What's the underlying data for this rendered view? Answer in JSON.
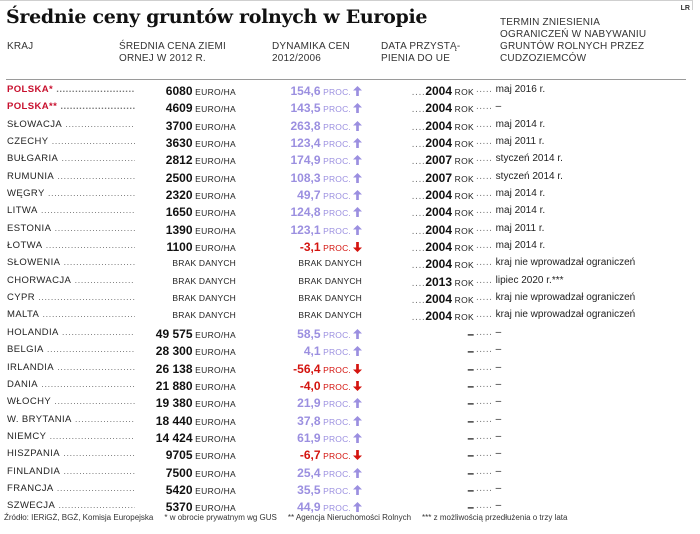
{
  "title": "Średnie ceny gruntów rolnych w Europie",
  "logo": "LR",
  "headers": {
    "country": "KRAJ",
    "price": [
      "ŚREDNIA CENA ZIEMI",
      "ORNEJ  W 2012 R."
    ],
    "dynamics": [
      "DYNAMIKA CEN",
      "2012/2006"
    ],
    "date": [
      "DATA PRZYSTĄ-",
      "PIENIA DO UE"
    ],
    "term": [
      "TERMIN ZNIESIENIA",
      "OGRANICZEŃ W NABYWANIU",
      "GRUNTÓW ROLNYCH PRZEZ",
      "CUDZOZIEMCÓW"
    ]
  },
  "units": {
    "price": "EURO/HA",
    "dynamics": "PROC.",
    "date": "ROK",
    "no_data": "BRAK DANYCH",
    "dash": "–"
  },
  "rows": [
    {
      "country": "POLSKA*",
      "highlight": true,
      "price": "6080",
      "dyn": "154,6",
      "trend": "up",
      "year": "2004",
      "term": "maj 2016 r."
    },
    {
      "country": "POLSKA**",
      "highlight": true,
      "price": "4609",
      "dyn": "143,5",
      "trend": "up",
      "year": "2004",
      "term": "–"
    },
    {
      "country": "SŁOWACJA",
      "price": "3700",
      "dyn": "263,8",
      "trend": "up",
      "year": "2004",
      "term": "maj 2014 r."
    },
    {
      "country": "CZECHY",
      "price": "3630",
      "dyn": "123,4",
      "trend": "up",
      "year": "2004",
      "term": "maj 2011 r."
    },
    {
      "country": "BUŁGARIA",
      "price": "2812",
      "dyn": "174,9",
      "trend": "up",
      "year": "2007",
      "term": "styczeń 2014 r."
    },
    {
      "country": "RUMUNIA",
      "price": "2500",
      "dyn": "108,3",
      "trend": "up",
      "year": "2007",
      "term": "styczeń 2014 r."
    },
    {
      "country": "WĘGRY",
      "price": "2320",
      "dyn": "49,7",
      "trend": "up",
      "year": "2004",
      "term": "maj 2014 r."
    },
    {
      "country": "LITWA",
      "price": "1650",
      "dyn": "124,8",
      "trend": "up",
      "year": "2004",
      "term": "maj 2014 r."
    },
    {
      "country": "ESTONIA",
      "price": "1390",
      "dyn": "123,1",
      "trend": "up",
      "year": "2004",
      "term": "maj 2011 r."
    },
    {
      "country": "ŁOTWA",
      "price": "1100",
      "dyn": "-3,1",
      "trend": "down",
      "year": "2004",
      "term": "maj 2014 r."
    },
    {
      "country": "SŁOWENIA",
      "price": "",
      "dyn": "",
      "trend": "",
      "year": "2004",
      "term": "kraj nie wprowadzał ograniczeń"
    },
    {
      "country": "CHORWACJA",
      "price": "",
      "dyn": "",
      "trend": "",
      "year": "2013",
      "term": "lipiec 2020 r.***"
    },
    {
      "country": "CYPR",
      "price": "",
      "dyn": "",
      "trend": "",
      "year": "2004",
      "term": "kraj nie wprowadzał ograniczeń"
    },
    {
      "country": "MALTA",
      "price": "",
      "dyn": "",
      "trend": "",
      "year": "2004",
      "term": "kraj nie wprowadzał ograniczeń"
    },
    {
      "country": "HOLANDIA",
      "price": "49 575",
      "dyn": "58,5",
      "trend": "up",
      "year": "",
      "term": "–"
    },
    {
      "country": "BELGIA",
      "price": "28 300",
      "dyn": "4,1",
      "trend": "up",
      "year": "",
      "term": "–"
    },
    {
      "country": "IRLANDIA",
      "price": "26 138",
      "dyn": "-56,4",
      "trend": "down",
      "year": "",
      "term": "–"
    },
    {
      "country": "DANIA",
      "price": "21 880",
      "dyn": "-4,0",
      "trend": "down",
      "year": "",
      "term": "–"
    },
    {
      "country": "WŁOCHY",
      "price": "19 380",
      "dyn": "21,9",
      "trend": "up",
      "year": "",
      "term": "–"
    },
    {
      "country": "W. BRYTANIA",
      "price": "18 440",
      "dyn": "37,8",
      "trend": "up",
      "year": "",
      "term": "–"
    },
    {
      "country": "NIEMCY",
      "price": "14 424",
      "dyn": "61,9",
      "trend": "up",
      "year": "",
      "term": "–"
    },
    {
      "country": "HISZPANIA",
      "price": "9705",
      "dyn": "-6,7",
      "trend": "down",
      "year": "",
      "term": "–"
    },
    {
      "country": "FINLANDIA",
      "price": "7500",
      "dyn": "25,4",
      "trend": "up",
      "year": "",
      "term": "–"
    },
    {
      "country": "FRANCJA",
      "price": "5420",
      "dyn": "35,5",
      "trend": "up",
      "year": "",
      "term": "–"
    },
    {
      "country": "SZWECJA",
      "price": "5370",
      "dyn": "44,9",
      "trend": "up",
      "year": "",
      "term": "–"
    }
  ],
  "footer": [
    "Źródło: IERiGŻ, BGŻ, Komisja Europejska",
    "* w obrocie prywatnym wg GUS",
    "** Agencja Nieruchomości Rolnych",
    "*** z możliwością przedłużenia o trzy lata"
  ],
  "colors": {
    "highlight": "#c8102e",
    "positive": "#9b8fe0",
    "negative": "#d4140f"
  }
}
